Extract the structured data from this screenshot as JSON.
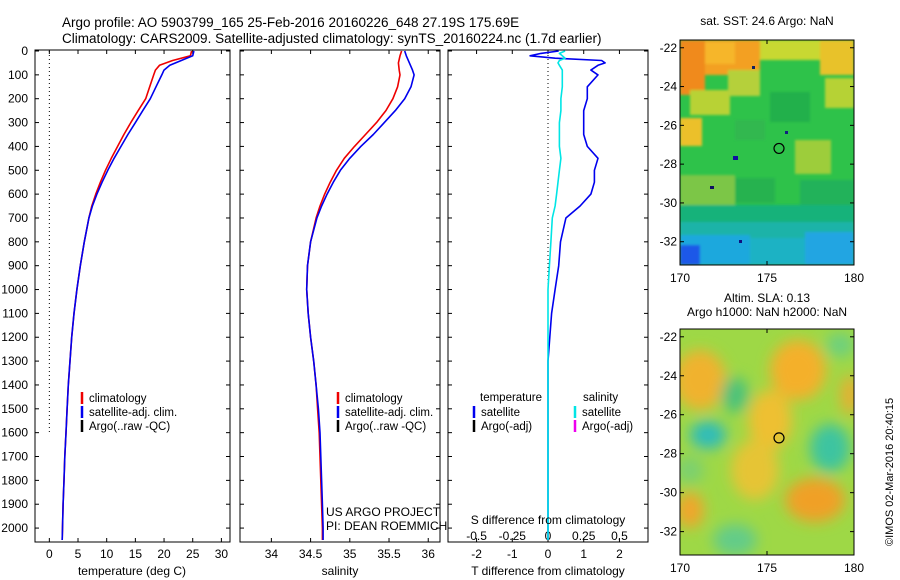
{
  "header": {
    "line1": "Argo profile: AO 5903799_165 25-Feb-2016 20160226_648 27.19S 175.69E",
    "line2": "Climatology: CARS2009. Satellite-adjusted climatology: synTS_20160224.nc (1.7d earlier)"
  },
  "y_ticks": [
    "0",
    "100",
    "200",
    "300",
    "400",
    "500",
    "600",
    "700",
    "800",
    "900",
    "1000",
    "1100",
    "1200",
    "1300",
    "1400",
    "1500",
    "1600",
    "1700",
    "1800",
    "1900",
    "2000"
  ],
  "colors": {
    "climatology": "#ee0000",
    "satellite": "#0000ee",
    "argo": "#000000",
    "sal_satellite": "#00e5e5",
    "sal_argo": "#ee00ee",
    "map_circle": "#000000"
  },
  "chart_data": [
    {
      "type": "line",
      "id": "temperature",
      "xlabel": "temperature (deg C)",
      "ylabel": "",
      "xlim": [
        -2.5,
        31.5
      ],
      "ylim": [
        2050,
        0
      ],
      "x_ticks": [
        "0",
        "5",
        "10",
        "15",
        "20",
        "25",
        "30"
      ],
      "x_tick_values": [
        0,
        5,
        10,
        15,
        20,
        25,
        30
      ],
      "grid": false,
      "legend_position": "lower-middle",
      "legend": [
        "climatology",
        "satellite-adj. clim.",
        "Argo(..raw -QC)"
      ],
      "series": [
        {
          "name": "climatology",
          "color": "#ee0000",
          "depth": [
            0,
            20,
            40,
            60,
            80,
            100,
            150,
            200,
            250,
            300,
            350,
            400,
            450,
            500,
            550,
            600,
            650,
            700,
            800,
            900,
            1000,
            1100,
            1200,
            1300,
            1400,
            1500,
            1600,
            1700,
            1800,
            1900,
            2000,
            2050
          ],
          "values": [
            24.8,
            24.6,
            21.5,
            19.2,
            18.5,
            18.2,
            17.5,
            16.8,
            15.5,
            14.2,
            13.0,
            11.9,
            10.8,
            9.8,
            8.9,
            8.1,
            7.4,
            6.9,
            6.1,
            5.4,
            4.8,
            4.3,
            3.9,
            3.6,
            3.3,
            3.1,
            2.9,
            2.7,
            2.55,
            2.4,
            2.3,
            2.25
          ]
        },
        {
          "name": "satellite-adj. clim.",
          "color": "#0000ee",
          "depth": [
            0,
            20,
            40,
            60,
            80,
            100,
            150,
            200,
            250,
            300,
            350,
            400,
            450,
            500,
            550,
            600,
            650,
            700,
            800,
            900,
            1000,
            1100,
            1200,
            1300,
            1400,
            1500,
            1600,
            1700,
            1800,
            1900,
            2000,
            2050
          ],
          "values": [
            25.2,
            25.0,
            23.0,
            21.0,
            20.0,
            19.6,
            18.6,
            17.6,
            16.3,
            15.0,
            13.7,
            12.5,
            11.3,
            10.2,
            9.2,
            8.3,
            7.5,
            6.9,
            6.1,
            5.4,
            4.8,
            4.3,
            3.9,
            3.6,
            3.3,
            3.1,
            2.9,
            2.7,
            2.55,
            2.4,
            2.3,
            2.25
          ]
        }
      ]
    },
    {
      "type": "line",
      "id": "salinity",
      "xlabel": "salinity",
      "ylabel": "",
      "xlim": [
        33.6,
        36.15
      ],
      "ylim": [
        2050,
        0
      ],
      "x_ticks": [
        "34",
        "34.5",
        "35",
        "35.5",
        "36"
      ],
      "x_tick_values": [
        34,
        34.5,
        35,
        35.5,
        36
      ],
      "grid": false,
      "legend_position": "lower-middle",
      "legend": [
        "climatology",
        "satellite-adj. clim.",
        "Argo(..raw -QC)"
      ],
      "annotations": [
        "US ARGO PROJECT",
        "PI: DEAN ROEMMICH"
      ],
      "series": [
        {
          "name": "climatology",
          "color": "#ee0000",
          "depth": [
            0,
            20,
            50,
            80,
            100,
            150,
            200,
            250,
            300,
            350,
            400,
            450,
            500,
            550,
            600,
            650,
            700,
            800,
            900,
            1000,
            1100,
            1200,
            1300,
            1400,
            1500,
            1600,
            1700,
            1800,
            1900,
            2000,
            2050
          ],
          "values": [
            35.66,
            35.64,
            35.62,
            35.63,
            35.64,
            35.61,
            35.55,
            35.46,
            35.34,
            35.2,
            35.06,
            34.93,
            34.83,
            34.75,
            34.68,
            34.62,
            34.57,
            34.5,
            34.46,
            34.45,
            34.47,
            34.5,
            34.54,
            34.57,
            34.59,
            34.61,
            34.62,
            34.63,
            34.64,
            34.65,
            34.65
          ]
        },
        {
          "name": "satellite-adj. clim.",
          "color": "#0000ee",
          "depth": [
            0,
            20,
            50,
            80,
            100,
            150,
            200,
            250,
            300,
            350,
            400,
            450,
            500,
            550,
            600,
            650,
            700,
            800,
            900,
            1000,
            1100,
            1200,
            1300,
            1400,
            1500,
            1600,
            1700,
            1800,
            1900,
            2000,
            2050
          ],
          "values": [
            35.7,
            35.72,
            35.76,
            35.8,
            35.82,
            35.78,
            35.7,
            35.58,
            35.44,
            35.3,
            35.14,
            35.0,
            34.88,
            34.79,
            34.71,
            34.64,
            34.58,
            34.5,
            34.46,
            34.45,
            34.47,
            34.5,
            34.54,
            34.57,
            34.6,
            34.62,
            34.63,
            34.64,
            34.65,
            34.66,
            34.66
          ]
        }
      ]
    },
    {
      "type": "line",
      "id": "difference",
      "xlabel": "T difference from climatology",
      "xlabel_top": "S difference from climatology",
      "xlim": [
        -2.8,
        2.8
      ],
      "ylim": [
        2050,
        0
      ],
      "x_ticks": [
        "-2",
        "-1",
        "0",
        "1",
        "2"
      ],
      "x_tick_values": [
        -2,
        -1,
        0,
        1,
        2
      ],
      "s_ticks": [
        "-0.5",
        "-0.25",
        "0",
        "0.25",
        "0.5"
      ],
      "grid": false,
      "legend_position": "lower-middle",
      "legend_titles": [
        "temperature",
        "salinity"
      ],
      "legend": [
        "satellite",
        "Argo(-adj)",
        "satellite",
        "Argo(-adj)"
      ],
      "series": [
        {
          "name": "satellite",
          "quantity": "temperature",
          "color": "#0000ee",
          "depth": [
            0,
            10,
            20,
            30,
            40,
            50,
            60,
            80,
            100,
            150,
            200,
            250,
            300,
            350,
            400,
            450,
            500,
            550,
            600,
            650,
            700,
            800,
            900,
            1000,
            1100,
            1200,
            1300,
            1400,
            1500,
            1600,
            1700,
            1800,
            1900,
            2000,
            2050
          ],
          "values": [
            0.3,
            -0.2,
            -0.5,
            0.2,
            1.5,
            1.6,
            1.4,
            1.2,
            1.4,
            1.1,
            1.1,
            1.0,
            1.0,
            1.0,
            1.1,
            1.4,
            1.3,
            1.3,
            1.2,
            0.9,
            0.5,
            0.35,
            0.3,
            0.2,
            0.1,
            0.05,
            0.0,
            0.0,
            0.0,
            0.0,
            0.0,
            0.0,
            0.0,
            0.0,
            0.0
          ]
        },
        {
          "name": "satellite",
          "quantity": "salinity",
          "color": "#00e5e5",
          "depth": [
            0,
            10,
            20,
            30,
            40,
            50,
            60,
            80,
            100,
            150,
            200,
            250,
            300,
            350,
            400,
            450,
            500,
            550,
            600,
            650,
            700,
            800,
            900,
            1000,
            1100,
            1200,
            1300,
            1400,
            1500,
            1600,
            1700,
            1800,
            1900,
            2000,
            2050
          ],
          "values": [
            0.12,
            0.08,
            0.1,
            0.12,
            0.08,
            0.07,
            0.08,
            0.1,
            0.1,
            0.1,
            0.09,
            0.09,
            0.08,
            0.08,
            0.08,
            0.09,
            0.08,
            0.07,
            0.06,
            0.05,
            0.03,
            0.02,
            0.01,
            0.0,
            0.0,
            0.0,
            0.0,
            0.0,
            0.0,
            0.0,
            0.0,
            0.0,
            0.0,
            0.0,
            0.0
          ]
        }
      ]
    },
    {
      "type": "heatmap",
      "id": "sst_map",
      "title": "sat. SST: 24.6 Argo: NaN",
      "x_ticks": [
        "170",
        "175",
        "180"
      ],
      "y_ticks": [
        "-22",
        "-24",
        "-26",
        "-28",
        "-30",
        "-32"
      ],
      "xlim": [
        170,
        180
      ],
      "ylim": [
        -33.2,
        -21.6
      ],
      "marker": {
        "lon": 175.69,
        "lat": -27.19
      }
    },
    {
      "type": "heatmap",
      "id": "sla_map",
      "title": "Altim. SLA: 0.13",
      "subtitle": "Argo h1000: NaN h2000: NaN",
      "x_ticks": [
        "170",
        "175",
        "180"
      ],
      "y_ticks": [
        "-22",
        "-24",
        "-26",
        "-28",
        "-30",
        "-32"
      ],
      "xlim": [
        170,
        180
      ],
      "ylim": [
        -33.2,
        -21.6
      ],
      "marker": {
        "lon": 175.69,
        "lat": -27.19
      }
    }
  ],
  "stamp": "©IMOS 02-Mar-2016 20:40:15"
}
